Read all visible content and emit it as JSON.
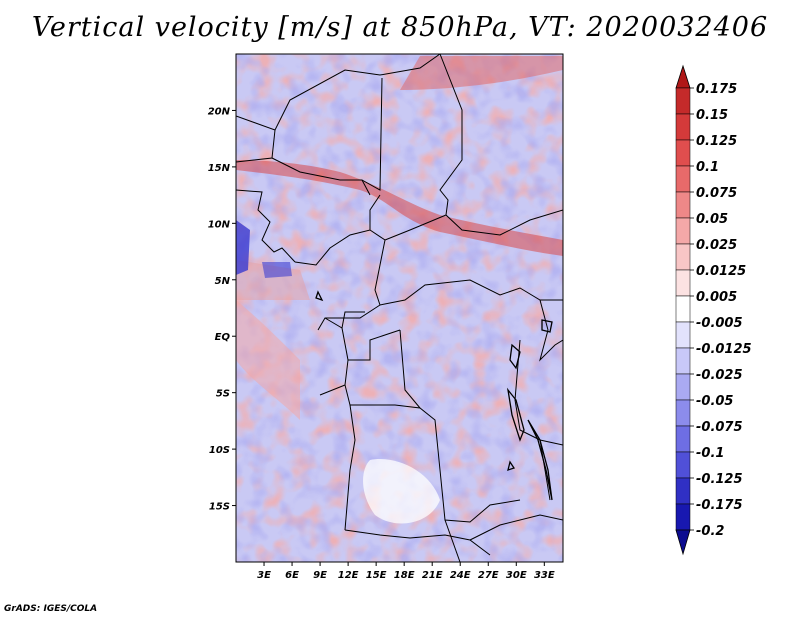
{
  "title": "Vertical velocity [m/s] at 850hPa, VT: 2020032406",
  "credit": "GrADS: IGES/COLA",
  "map": {
    "lon_range": [
      0,
      35
    ],
    "lat_range": [
      -20,
      25
    ],
    "lat_ticks": [
      {
        "value": 20,
        "label": "20N"
      },
      {
        "value": 15,
        "label": "15N"
      },
      {
        "value": 10,
        "label": "10N"
      },
      {
        "value": 5,
        "label": "5N"
      },
      {
        "value": 0,
        "label": "EQ"
      },
      {
        "value": -5,
        "label": "5S"
      },
      {
        "value": -10,
        "label": "10S"
      },
      {
        "value": -15,
        "label": "15S"
      }
    ],
    "lon_ticks": [
      {
        "value": 3,
        "label": "3E"
      },
      {
        "value": 6,
        "label": "6E"
      },
      {
        "value": 9,
        "label": "9E"
      },
      {
        "value": 12,
        "label": "12E"
      },
      {
        "value": 15,
        "label": "15E"
      },
      {
        "value": 18,
        "label": "18E"
      },
      {
        "value": 21,
        "label": "21E"
      },
      {
        "value": 24,
        "label": "24E"
      },
      {
        "value": 27,
        "label": "27E"
      },
      {
        "value": 30,
        "label": "30E"
      },
      {
        "value": 33,
        "label": "33E"
      }
    ]
  },
  "colorbar": {
    "labels": [
      "0.175",
      "0.15",
      "0.125",
      "0.1",
      "0.075",
      "0.05",
      "0.025",
      "0.0125",
      "0.005",
      "-0.005",
      "-0.0125",
      "-0.025",
      "-0.05",
      "-0.075",
      "-0.1",
      "-0.125",
      "-0.175",
      "-0.2"
    ],
    "colors": [
      "#b01818",
      "#c42a2a",
      "#d43a3a",
      "#e04e4e",
      "#e86a6a",
      "#ee8888",
      "#f4a8a8",
      "#f8c6c6",
      "#fce2e2",
      "#ffffff",
      "#e2e2fc",
      "#c8c8f8",
      "#aaaaf2",
      "#8c8cec",
      "#6e6ee4",
      "#5050d8",
      "#3030c4",
      "#1818b0",
      "#0c0c90"
    ]
  }
}
